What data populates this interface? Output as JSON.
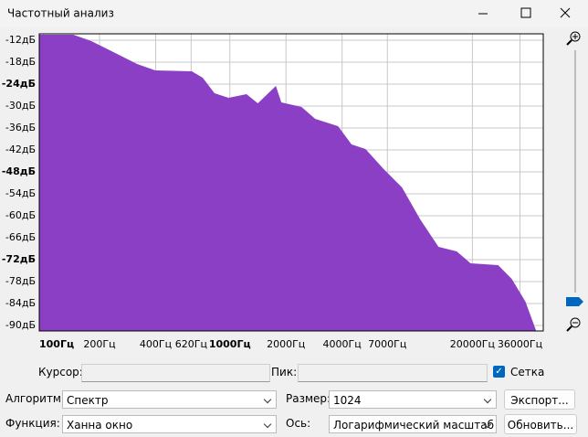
{
  "window": {
    "title": "Частотный анализ"
  },
  "controls": {
    "cursor_label": "Курсор:",
    "peak_label": "Пик:",
    "grid_label": "Сетка",
    "algorithm_label": "Алгоритм:",
    "algorithm": "Спектр",
    "size_label": "Размер:",
    "size": "1024",
    "export_button": "Экспорт...",
    "function_label": "Функция:",
    "function": "Ханна окно",
    "axis_label": "Ось:",
    "axis": "Логарифмический масштаб",
    "refresh_button": "Обновить..."
  },
  "chart_data": {
    "type": "area",
    "color": "#8b3fc4",
    "grid": true,
    "xscale": "log",
    "x": [
      95,
      145,
      181,
      254,
      318,
      398,
      625,
      715,
      828,
      985,
      1229,
      1413,
      1766,
      1889,
      2425,
      2868,
      3805,
      4500,
      5342,
      6692,
      8384,
      10504,
      13160,
      16490,
      19559,
      27486,
      32500,
      38530,
      44000
    ],
    "values": [
      -10.5,
      -10.5,
      -12.25,
      -16,
      -18.5,
      -20.25,
      -20.5,
      -22.25,
      -26.5,
      -27.75,
      -26.75,
      -29.25,
      -24.5,
      -29,
      -30.25,
      -33.5,
      -35.5,
      -40.5,
      -41.75,
      -47.25,
      -52.25,
      -61,
      -68.5,
      -69.75,
      -73,
      -73.5,
      -77.25,
      -83.5,
      -91.5
    ],
    "xlim": [
      95,
      48000
    ],
    "ylim": [
      -91.5,
      -10.25
    ],
    "xticks": [
      {
        "value": 100,
        "label": "100Гц"
      },
      {
        "value": 200,
        "label": "200Гц"
      },
      {
        "value": 400,
        "label": "400Гц"
      },
      {
        "value": 620,
        "label": "620Гц"
      },
      {
        "value": 1000,
        "label": "1000Гц"
      },
      {
        "value": 2000,
        "label": "2000Гц"
      },
      {
        "value": 4000,
        "label": "4000Гц"
      },
      {
        "value": 7000,
        "label": "7000Гц"
      },
      {
        "value": 20000,
        "label": "20000Гц"
      },
      {
        "value": 36000,
        "label": "36000Гц"
      }
    ],
    "yticks": [
      {
        "value": -12,
        "label": "-12дБ"
      },
      {
        "value": -18,
        "label": "-18дБ"
      },
      {
        "value": -24,
        "label": "-24дБ"
      },
      {
        "value": -30,
        "label": "-30дБ"
      },
      {
        "value": -36,
        "label": "-36дБ"
      },
      {
        "value": -42,
        "label": "-42дБ"
      },
      {
        "value": -48,
        "label": "-48дБ"
      },
      {
        "value": -54,
        "label": "-54дБ"
      },
      {
        "value": -60,
        "label": "-60дБ"
      },
      {
        "value": -66,
        "label": "-66дБ"
      },
      {
        "value": -72,
        "label": "-72дБ"
      },
      {
        "value": -78,
        "label": "-78дБ"
      },
      {
        "value": -84,
        "label": "-84дБ"
      },
      {
        "value": -90,
        "label": "-90дБ"
      }
    ]
  }
}
